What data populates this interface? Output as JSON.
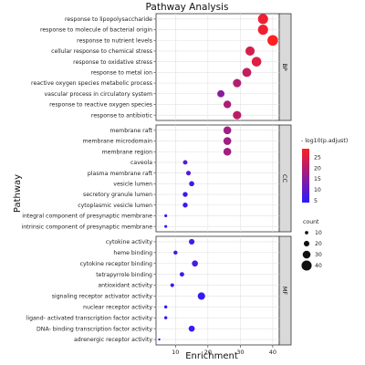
{
  "chart_data": {
    "type": "scatter",
    "title": "Pathway Analysis",
    "xlabel": "Enrichment",
    "ylabel": "Pathway",
    "xlim": [
      4,
      42
    ],
    "xticks": [
      10,
      20,
      30,
      40
    ],
    "facets": [
      {
        "name": "BP",
        "terms": [
          {
            "label": "response to lipopolysaccharide",
            "enrichment": 37,
            "count": 40,
            "p": 27
          },
          {
            "label": "response to molecule of bacterial origin",
            "enrichment": 37,
            "count": 40,
            "p": 27
          },
          {
            "label": "response to nutrient levels",
            "enrichment": 40,
            "count": 42,
            "p": 29
          },
          {
            "label": "cellular response to chemical stress",
            "enrichment": 33,
            "count": 36,
            "p": 24
          },
          {
            "label": "response to oxidative stress",
            "enrichment": 35,
            "count": 38,
            "p": 25
          },
          {
            "label": "response to metal ion",
            "enrichment": 32,
            "count": 35,
            "p": 22
          },
          {
            "label": "reactive oxygen species metabolic process",
            "enrichment": 29,
            "count": 32,
            "p": 20
          },
          {
            "label": "vascular process in circulatory system",
            "enrichment": 24,
            "count": 27,
            "p": 15
          },
          {
            "label": "response to reactive oxygen species",
            "enrichment": 26,
            "count": 29,
            "p": 19
          },
          {
            "label": "response to antibiotic",
            "enrichment": 29,
            "count": 32,
            "p": 21
          }
        ]
      },
      {
        "name": "CC",
        "terms": [
          {
            "label": "membrane raft",
            "enrichment": 26,
            "count": 30,
            "p": 18
          },
          {
            "label": "membrane microdomain",
            "enrichment": 26,
            "count": 30,
            "p": 18
          },
          {
            "label": "membrane region",
            "enrichment": 26,
            "count": 30,
            "p": 18
          },
          {
            "label": "caveola",
            "enrichment": 13,
            "count": 15,
            "p": 9
          },
          {
            "label": "plasma membrane raft",
            "enrichment": 14,
            "count": 16,
            "p": 9
          },
          {
            "label": "vesicle lumen",
            "enrichment": 15,
            "count": 18,
            "p": 6
          },
          {
            "label": "secretory granule lumen",
            "enrichment": 13,
            "count": 17,
            "p": 6
          },
          {
            "label": "cytoplasmic vesicle lumen",
            "enrichment": 13,
            "count": 17,
            "p": 6
          },
          {
            "label": "integral component of presynaptic membrane",
            "enrichment": 7,
            "count": 8,
            "p": 5
          },
          {
            "label": "intrinsic component of presynaptic membrane",
            "enrichment": 7,
            "count": 8,
            "p": 5
          }
        ]
      },
      {
        "name": "MF",
        "terms": [
          {
            "label": "cytokine activity",
            "enrichment": 15,
            "count": 20,
            "p": 7
          },
          {
            "label": "heme binding",
            "enrichment": 10,
            "count": 13,
            "p": 6
          },
          {
            "label": "cytokine receptor binding",
            "enrichment": 16,
            "count": 22,
            "p": 7
          },
          {
            "label": "tetrapyrrole binding",
            "enrichment": 12,
            "count": 15,
            "p": 6
          },
          {
            "label": "antioxidant activity",
            "enrichment": 9,
            "count": 12,
            "p": 6
          },
          {
            "label": "signaling receptor activator activity",
            "enrichment": 18,
            "count": 28,
            "p": 5
          },
          {
            "label": "nuclear receptor activity",
            "enrichment": 7,
            "count": 9,
            "p": 5
          },
          {
            "label": "ligand- activated transcription factor activity",
            "enrichment": 7,
            "count": 9,
            "p": 5
          },
          {
            "label": "DNA- binding transcription factor activity",
            "enrichment": 15,
            "count": 22,
            "p": 5
          },
          {
            "label": "adrenergic receptor activity",
            "enrichment": 5,
            "count": 5,
            "p": 4
          }
        ]
      }
    ],
    "color_legend": {
      "title": "- log10(p.adjust)",
      "ticks": [
        5,
        10,
        15,
        20,
        25
      ],
      "range": [
        4,
        29
      ],
      "low_color": "#2a1bff",
      "high_color": "#ff2020"
    },
    "size_legend": {
      "title": "count",
      "values": [
        10,
        20,
        30,
        40
      ],
      "range": [
        5,
        42
      ]
    },
    "grid": true,
    "legend_position": "right"
  }
}
